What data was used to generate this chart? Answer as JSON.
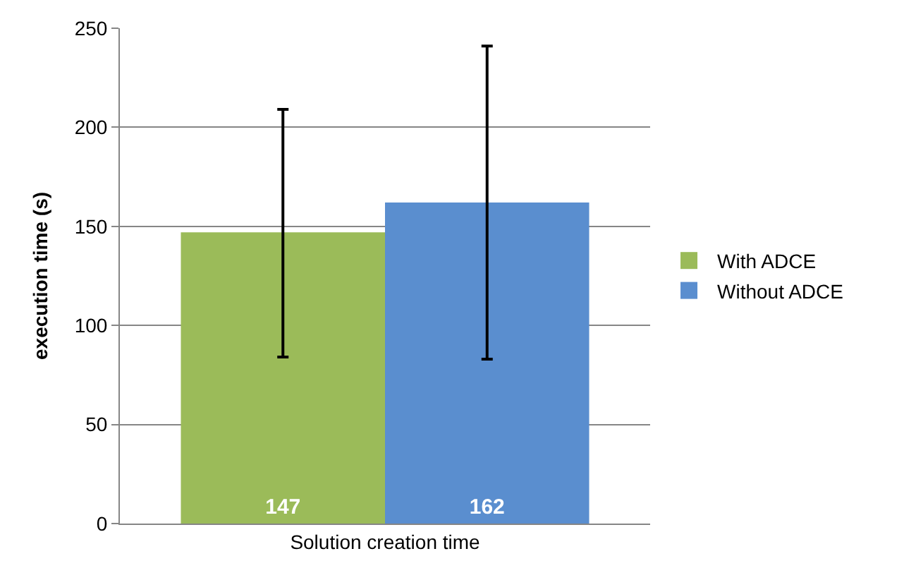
{
  "chart_data": {
    "type": "bar",
    "ylabel": "execution time (s)",
    "categories": [
      "Solution creation time"
    ],
    "series": [
      {
        "name": "With ADCE",
        "color": "#9bbb59",
        "values": [
          147
        ],
        "errors": [
          [
            84,
            209
          ]
        ]
      },
      {
        "name": "Without ADCE",
        "color": "#5a8ecf",
        "values": [
          162
        ],
        "errors": [
          [
            83,
            241
          ]
        ]
      }
    ],
    "ylim": [
      0,
      250
    ],
    "yticks": [
      0,
      50,
      100,
      150,
      200,
      250
    ],
    "grid": "y",
    "legend": "right",
    "data_labels": true
  }
}
